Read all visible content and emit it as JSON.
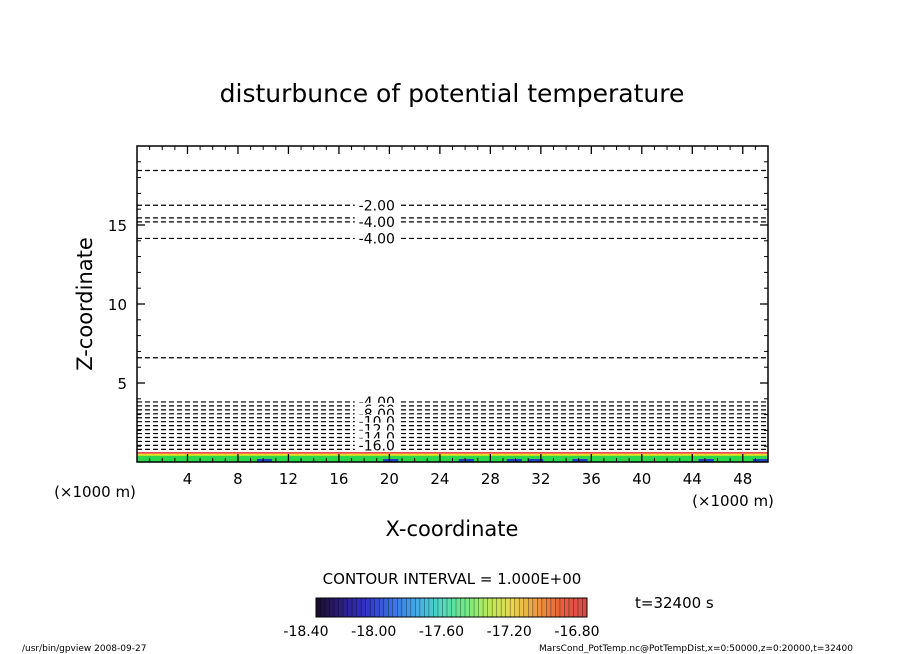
{
  "chart_data": {
    "type": "contour",
    "title": "disturbunce of potential temperature",
    "xlabel": "X-coordinate",
    "ylabel": "Z-coordinate",
    "x_unit": "(×1000 m)",
    "y_unit": "(×1000 m)",
    "xlim": [
      0,
      50
    ],
    "ylim": [
      0,
      20
    ],
    "x_ticks": [
      4,
      8,
      12,
      16,
      20,
      24,
      28,
      32,
      36,
      40,
      44,
      48
    ],
    "y_ticks": [
      5,
      10,
      15
    ],
    "contour_interval": "CONTOUR INTERVAL = 1.000E+00",
    "contours": [
      {
        "z": 18.45,
        "label": ""
      },
      {
        "z": 16.25,
        "label": "-2.00"
      },
      {
        "z": 15.45,
        "label": ""
      },
      {
        "z": 15.2,
        "label": "-4.00"
      },
      {
        "z": 14.15,
        "label": "-4.00"
      },
      {
        "z": 6.6,
        "label": ""
      },
      {
        "z": 3.8,
        "label": "-4.00"
      },
      {
        "z": 3.55,
        "label": ""
      },
      {
        "z": 3.3,
        "label": "-6.00"
      },
      {
        "z": 3.05,
        "label": "-8.00"
      },
      {
        "z": 2.8,
        "label": ""
      },
      {
        "z": 2.55,
        "label": "-10.0"
      },
      {
        "z": 2.3,
        "label": ""
      },
      {
        "z": 2.05,
        "label": "-12.0"
      },
      {
        "z": 1.8,
        "label": ""
      },
      {
        "z": 1.55,
        "label": "-14.0"
      },
      {
        "z": 1.3,
        "label": ""
      },
      {
        "z": 1.05,
        "label": "-16.0"
      },
      {
        "z": 0.8,
        "label": ""
      }
    ],
    "colorbar": {
      "tick_labels": [
        "-18.40",
        "-18.00",
        "-17.60",
        "-17.20",
        "-16.80"
      ],
      "colors": [
        "#1a0f30",
        "#2c1e86",
        "#3333cc",
        "#3a6fe0",
        "#45a8e8",
        "#4fd6c4",
        "#6ee88a",
        "#b8ec5a",
        "#e8d850",
        "#ec9a44",
        "#e8603a",
        "#d84a4a"
      ]
    },
    "shading_colors": {
      "green": "#2ad84a",
      "yellow": "#e8e020",
      "red": "#e83030",
      "blue": "#2040c0"
    },
    "time_label": "t=32400 s"
  },
  "footer": {
    "left": "/usr/bin/gpview   2008-09-27",
    "right": "MarsCond_PotTemp.nc@PotTempDist,x=0:50000,z=0:20000,t=32400"
  }
}
